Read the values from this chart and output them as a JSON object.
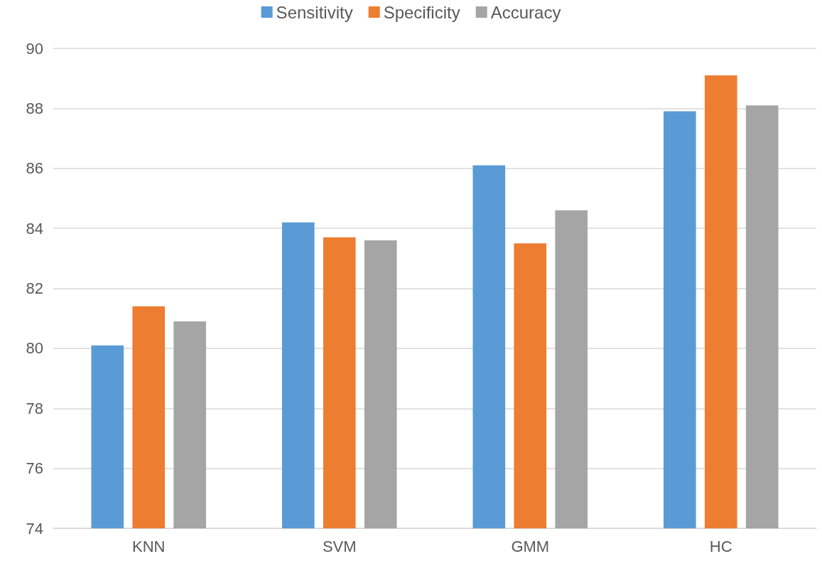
{
  "chart_data": {
    "type": "bar",
    "categories": [
      "KNN",
      "SVM",
      "GMM",
      "HC"
    ],
    "series": [
      {
        "name": "Sensitivity",
        "color": "#5b9bd5",
        "values": [
          80.1,
          84.2,
          86.1,
          87.9
        ]
      },
      {
        "name": "Specificity",
        "color": "#ed7d31",
        "values": [
          81.4,
          83.7,
          83.5,
          89.1
        ]
      },
      {
        "name": "Accuracy",
        "color": "#a5a5a5",
        "values": [
          80.9,
          83.6,
          84.6,
          88.1
        ]
      }
    ],
    "ylim": [
      74,
      90
    ],
    "yticks": [
      74,
      76,
      78,
      80,
      82,
      84,
      86,
      88,
      90
    ],
    "grid": "y",
    "legend": "top"
  }
}
